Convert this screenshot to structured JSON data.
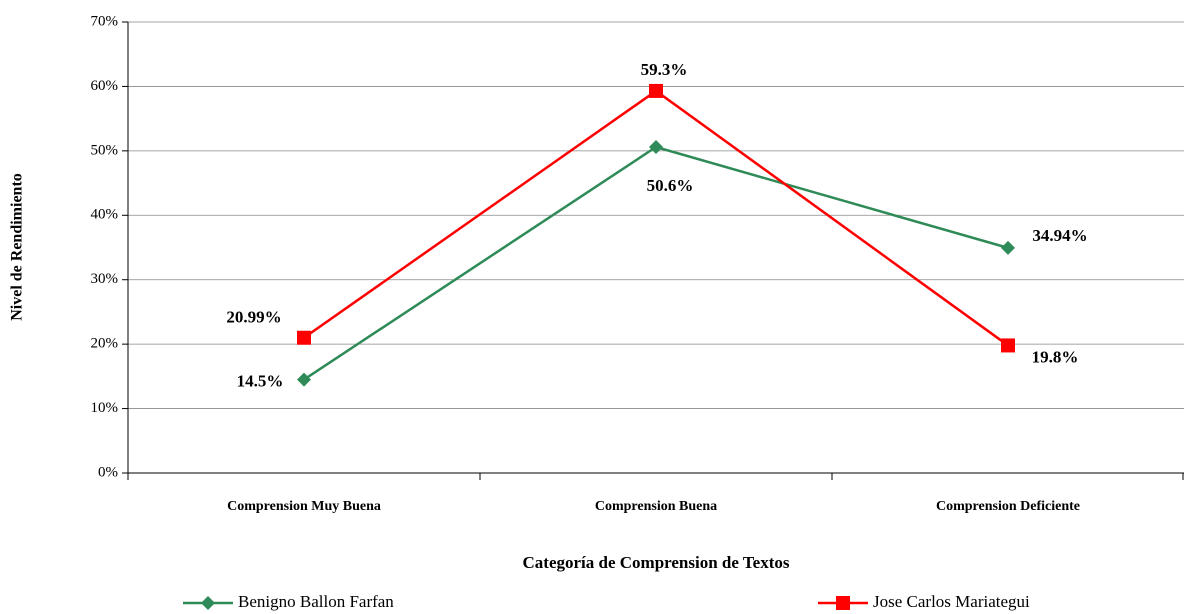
{
  "chart_data": {
    "type": "line",
    "x_label": "Categoría de Comprension de Textos",
    "y_label": "Nivel de Rendimiento",
    "categories": [
      "Comprension Muy Buena",
      "Comprension  Buena",
      "Comprension Deficiente"
    ],
    "series": [
      {
        "name": "Benigno Ballon Farfan",
        "color": "#2e8b57",
        "marker": "diamond",
        "values": [
          14.5,
          50.6,
          34.94
        ],
        "value_labels": [
          "14.5%",
          "50.6%",
          "34.94%"
        ]
      },
      {
        "name": "Jose Carlos Mariategui",
        "color": "#ff0000",
        "marker": "square",
        "values": [
          20.99,
          59.3,
          19.8
        ],
        "value_labels": [
          "20.99%",
          "59.3%",
          "19.8%"
        ]
      }
    ],
    "ylim": [
      0,
      70
    ],
    "yticks": [
      {
        "value": 0,
        "label": "0%"
      },
      {
        "value": 10,
        "label": "10%"
      },
      {
        "value": 20,
        "label": "20%"
      },
      {
        "value": 30,
        "label": "30%"
      },
      {
        "value": 40,
        "label": "40%"
      },
      {
        "value": 50,
        "label": "50%"
      },
      {
        "value": 60,
        "label": "60%"
      },
      {
        "value": 70,
        "label": "70%"
      }
    ],
    "grid": true
  }
}
